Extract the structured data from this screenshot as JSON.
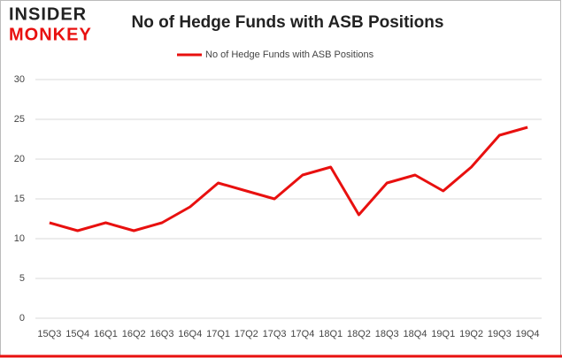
{
  "logo": {
    "line1": "INSIDER",
    "line2": "MONKEY"
  },
  "chart_data": {
    "type": "line",
    "title": "No of Hedge Funds with ASB Positions",
    "categories": [
      "15Q3",
      "15Q4",
      "16Q1",
      "16Q2",
      "16Q3",
      "16Q4",
      "17Q1",
      "17Q2",
      "17Q3",
      "17Q4",
      "18Q1",
      "18Q2",
      "18Q3",
      "18Q4",
      "19Q1",
      "19Q2",
      "19Q3",
      "19Q4"
    ],
    "series": [
      {
        "name": "No of Hedge Funds with ASB Positions",
        "color": "#e8100f",
        "values": [
          12,
          11,
          12,
          11,
          12,
          14,
          17,
          16,
          15,
          18,
          19,
          13,
          17,
          18,
          16,
          19,
          23,
          24
        ]
      }
    ],
    "ylim": [
      0,
      30
    ],
    "yticks": [
      0,
      5,
      10,
      15,
      20,
      25,
      30
    ],
    "grid": true,
    "legend": "top"
  }
}
